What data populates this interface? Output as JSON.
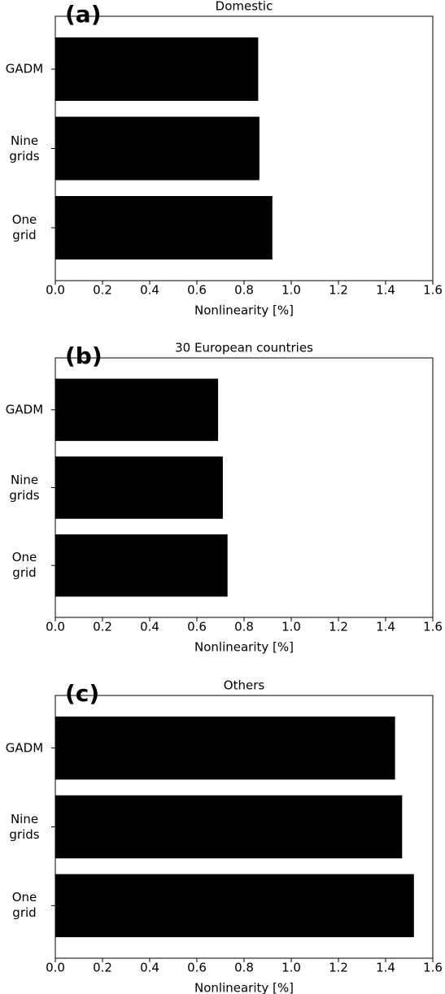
{
  "chart_data": [
    {
      "type": "barh",
      "panel_label": "(a)",
      "title": "Domestic",
      "xlabel": "Nonlinearity [%]",
      "categories": [
        "GADM",
        "Nine\ngrids",
        "One\ngrid"
      ],
      "values": [
        0.86,
        0.865,
        0.92
      ],
      "color": "#000000",
      "xlim": [
        0,
        1.6
      ],
      "xticks": [
        {
          "value": 0,
          "label": "0.0"
        },
        0.2,
        0.4,
        0.6,
        0.8,
        {
          "value": 1,
          "label": "1.0"
        },
        1.2,
        1.4,
        1.6
      ]
    },
    {
      "type": "barh",
      "panel_label": "(b)",
      "title": "30 European countries",
      "xlabel": "Nonlinearity [%]",
      "categories": [
        "GADM",
        "Nine\ngrids",
        "One\ngrid"
      ],
      "values": [
        0.69,
        0.71,
        0.73
      ],
      "color": "#000000",
      "xlim": [
        0,
        1.6
      ],
      "xticks": [
        {
          "value": 0,
          "label": "0.0"
        },
        0.2,
        0.4,
        0.6,
        0.8,
        {
          "value": 1,
          "label": "1.0"
        },
        1.2,
        1.4,
        1.6
      ]
    },
    {
      "type": "barh",
      "panel_label": "(c)",
      "title": "Others",
      "xlabel": "Nonlinearity [%]",
      "categories": [
        "GADM",
        "Nine\ngrids",
        "One\ngrid"
      ],
      "values": [
        1.44,
        1.47,
        1.52
      ],
      "color": "#000000",
      "xlim": [
        0,
        1.6
      ],
      "xticks": [
        {
          "value": 0,
          "label": "0.0"
        },
        0.2,
        0.4,
        0.6,
        0.8,
        {
          "value": 1,
          "label": "1.0"
        },
        1.2,
        1.4,
        1.6
      ]
    }
  ]
}
